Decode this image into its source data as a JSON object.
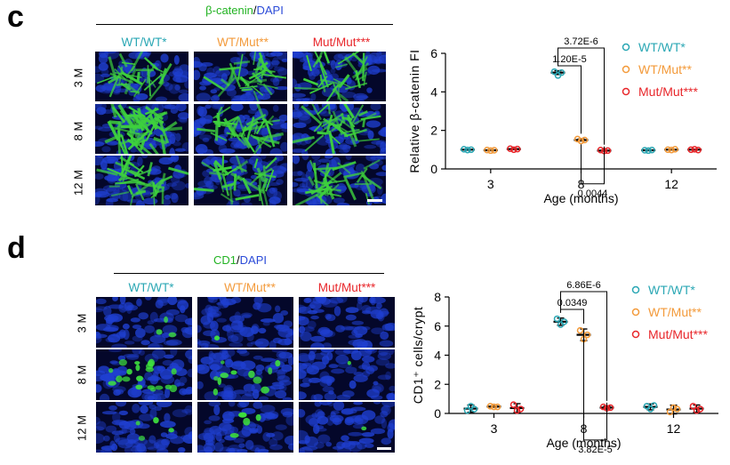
{
  "panels": [
    {
      "letter": "c",
      "marker_primary": "β-catenin",
      "marker_sep": "/",
      "marker_secondary": "DAPI",
      "columns": [
        "WT/WT*",
        "WT/Mut**",
        "Mut/Mut***"
      ],
      "rows": [
        "3 M",
        "8 M",
        "12 M"
      ]
    },
    {
      "letter": "d",
      "marker_primary": "CD1",
      "marker_sep": "/",
      "marker_secondary": "DAPI",
      "columns": [
        "WT/WT*",
        "WT/Mut**",
        "Mut/Mut***"
      ],
      "rows": [
        "3 M",
        "8 M",
        "12 M"
      ]
    }
  ],
  "colors": {
    "wt_wt": "#2aa7b4",
    "wt_mut": "#f39a3a",
    "mut_mut": "#e8262a",
    "green_channel": "#22b322",
    "blue_channel": "#2b4bd8"
  },
  "chart_data": [
    {
      "type": "scatter",
      "xlabel": "Age (months)",
      "ylabel": "Relative β-catenin FI",
      "categories": [
        "3",
        "8",
        "12"
      ],
      "ylim": [
        0,
        6
      ],
      "yticks": [
        "0",
        "2",
        "4",
        "6"
      ],
      "legend_position": "top-right",
      "series": [
        {
          "name": "WT/WT*",
          "values": [
            1.0,
            5.0,
            0.97
          ],
          "points": [
            [
              1.02,
              0.98,
              1.0
            ],
            [
              5.05,
              4.85,
              5.0
            ],
            [
              0.97,
              0.95,
              0.98
            ]
          ],
          "error": [
            0.03,
            0.1,
            0.02
          ]
        },
        {
          "name": "WT/Mut**",
          "values": [
            0.97,
            1.5,
            1.0
          ],
          "points": [
            [
              0.98,
              0.95,
              0.97
            ],
            [
              1.55,
              1.45,
              1.5
            ],
            [
              1.0,
              0.98,
              1.02
            ]
          ],
          "error": [
            0.02,
            0.05,
            0.02
          ]
        },
        {
          "name": "Mut/Mut***",
          "values": [
            1.03,
            0.95,
            1.0
          ],
          "points": [
            [
              1.05,
              1.0,
              1.03
            ],
            [
              0.98,
              0.93,
              0.95
            ],
            [
              1.0,
              1.02,
              0.98
            ]
          ],
          "error": [
            0.03,
            0.03,
            0.02
          ]
        }
      ],
      "annotations": [
        {
          "label": "3.72E-6",
          "category": "8",
          "from": "WT/WT*",
          "to": "Mut/Mut***"
        },
        {
          "label": "1.20E-5",
          "category": "8",
          "from": "WT/WT*",
          "to": "WT/Mut**"
        },
        {
          "label": "0.0044",
          "category": "8",
          "from": "WT/Mut**",
          "to": "Mut/Mut***"
        }
      ]
    },
    {
      "type": "scatter",
      "xlabel": "Age (months)",
      "ylabel": "CD1⁺ cells/crypt",
      "categories": [
        "3",
        "8",
        "12"
      ],
      "ylim": [
        0,
        8
      ],
      "yticks": [
        "0",
        "2",
        "4",
        "6",
        "8"
      ],
      "legend_position": "top-right",
      "series": [
        {
          "name": "WT/WT*",
          "values": [
            0.33,
            6.3,
            0.45
          ],
          "points": [
            [
              0.2,
              0.5,
              0.3
            ],
            [
              6.5,
              6.1,
              6.3
            ],
            [
              0.5,
              0.3,
              0.55
            ]
          ],
          "error": [
            0.25,
            0.25,
            0.2
          ]
        },
        {
          "name": "WT/Mut**",
          "values": [
            0.47,
            5.4,
            0.27
          ],
          "points": [
            [
              0.5,
              0.45,
              0.45
            ],
            [
              5.7,
              5.1,
              5.4
            ],
            [
              0.1,
              0.4,
              0.3
            ]
          ],
          "error": [
            0.05,
            0.4,
            0.3
          ]
        },
        {
          "name": "Mut/Mut***",
          "values": [
            0.37,
            0.4,
            0.33
          ],
          "points": [
            [
              0.6,
              0.2,
              0.3
            ],
            [
              0.45,
              0.35,
              0.4
            ],
            [
              0.5,
              0.2,
              0.3
            ]
          ],
          "error": [
            0.3,
            0.1,
            0.25
          ]
        }
      ],
      "annotations": [
        {
          "label": "6.86E-6",
          "category": "8",
          "from": "WT/WT*",
          "to": "Mut/Mut***"
        },
        {
          "label": "0.0349",
          "category": "8",
          "from": "WT/WT*",
          "to": "WT/Mut**"
        },
        {
          "label": "3.82E-5",
          "category": "8",
          "from": "WT/Mut**",
          "to": "Mut/Mut***"
        }
      ]
    }
  ]
}
